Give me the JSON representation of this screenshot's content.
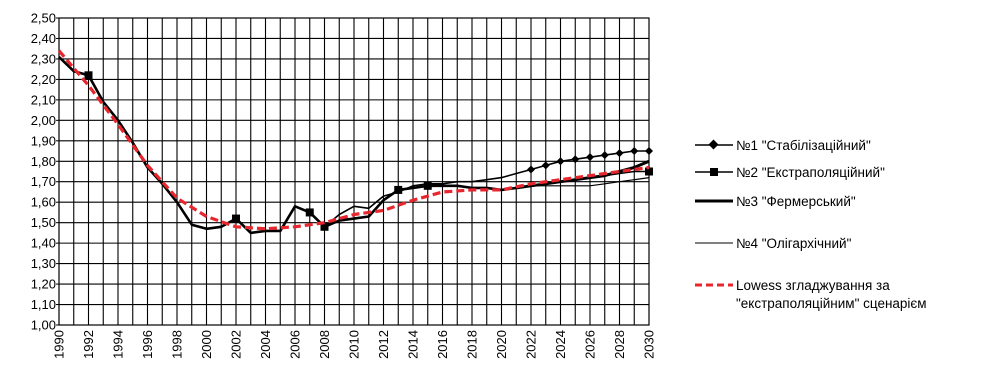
{
  "chart_data": {
    "type": "line",
    "xlim": [
      1990,
      2030
    ],
    "ylim": [
      1.0,
      2.5
    ],
    "y_ticks": [
      "1,00",
      "1,10",
      "1,20",
      "1,30",
      "1,40",
      "1,50",
      "1,60",
      "1,70",
      "1,80",
      "1,90",
      "2,00",
      "2,10",
      "2,20",
      "2,30",
      "2,40",
      "2,50"
    ],
    "x_ticks": [
      "1990",
      "1992",
      "1994",
      "1996",
      "1998",
      "2000",
      "2002",
      "2004",
      "2006",
      "2008",
      "2010",
      "2012",
      "2014",
      "2016",
      "2018",
      "2020",
      "2022",
      "2024",
      "2026",
      "2028",
      "2030"
    ],
    "grid": true,
    "legend_position": "right",
    "historical": {
      "x": [
        1990,
        1991,
        1992,
        1993,
        1994,
        1995,
        1996,
        1997,
        1998,
        1999,
        2000,
        2001,
        2002,
        2003,
        2004,
        2005,
        2006,
        2007,
        2008,
        2009,
        2010,
        2011,
        2012,
        2013,
        2014,
        2015,
        2016,
        2017,
        2018,
        2019,
        2020,
        2021
      ],
      "y": [
        2.31,
        2.24,
        2.22,
        2.09,
        2.0,
        1.89,
        1.77,
        1.69,
        1.6,
        1.49,
        1.47,
        1.48,
        1.52,
        1.45,
        1.46,
        1.46,
        1.58,
        1.55,
        1.48,
        1.51,
        1.52,
        1.53,
        1.61,
        1.66,
        1.67,
        1.68,
        1.68,
        1.68,
        1.67,
        1.67,
        1.66,
        1.67
      ]
    },
    "series": [
      {
        "name": "№1 \"Стабілізаційний\"",
        "marker": "diamond",
        "style": "thin",
        "x": [
          1990,
          1991,
          1992,
          1993,
          1994,
          1995,
          1996,
          1997,
          1998,
          1999,
          2000,
          2001,
          2002,
          2003,
          2004,
          2005,
          2006,
          2007,
          2008,
          2009,
          2010,
          2011,
          2012,
          2013,
          2014,
          2015,
          2016,
          2017,
          2018,
          2019,
          2020,
          2021,
          2022,
          2023,
          2024,
          2025,
          2026,
          2027,
          2028,
          2029,
          2030
        ],
        "y": [
          2.31,
          2.24,
          2.22,
          2.09,
          2.0,
          1.89,
          1.77,
          1.69,
          1.6,
          1.49,
          1.47,
          1.48,
          1.52,
          1.45,
          1.46,
          1.46,
          1.58,
          1.55,
          1.48,
          1.54,
          1.58,
          1.57,
          1.63,
          1.65,
          1.68,
          1.69,
          1.69,
          1.7,
          1.7,
          1.71,
          1.72,
          1.74,
          1.76,
          1.78,
          1.8,
          1.81,
          1.82,
          1.83,
          1.84,
          1.85,
          1.85
        ]
      },
      {
        "name": "№2 \"Екстраполяційний\"",
        "marker": "square",
        "style": "thin",
        "x": [
          1990,
          1991,
          1992,
          1993,
          1994,
          1995,
          1996,
          1997,
          1998,
          1999,
          2000,
          2001,
          2002,
          2003,
          2004,
          2005,
          2006,
          2007,
          2008,
          2009,
          2010,
          2011,
          2012,
          2013,
          2014,
          2015,
          2016,
          2017,
          2018,
          2019,
          2020,
          2021,
          2022,
          2023,
          2024,
          2025,
          2026,
          2027,
          2028,
          2029,
          2030
        ],
        "y": [
          2.31,
          2.24,
          2.22,
          2.09,
          2.0,
          1.89,
          1.77,
          1.69,
          1.6,
          1.49,
          1.47,
          1.48,
          1.52,
          1.45,
          1.46,
          1.46,
          1.58,
          1.55,
          1.48,
          1.51,
          1.52,
          1.53,
          1.61,
          1.66,
          1.67,
          1.68,
          1.68,
          1.68,
          1.67,
          1.67,
          1.66,
          1.67,
          1.68,
          1.69,
          1.7,
          1.71,
          1.72,
          1.73,
          1.74,
          1.75,
          1.75
        ]
      },
      {
        "name": "№3 \"Фермерський\"",
        "marker": "none",
        "style": "thick",
        "x": [
          2021,
          2022,
          2023,
          2024,
          2025,
          2026,
          2027,
          2028,
          2029,
          2030
        ],
        "y": [
          1.67,
          1.68,
          1.69,
          1.7,
          1.71,
          1.72,
          1.73,
          1.75,
          1.77,
          1.8
        ]
      },
      {
        "name": "№4 \"Олігархічний\"",
        "marker": "none",
        "style": "hair",
        "x": [
          2021,
          2022,
          2023,
          2024,
          2025,
          2026,
          2027,
          2028,
          2029,
          2030
        ],
        "y": [
          1.67,
          1.68,
          1.68,
          1.68,
          1.68,
          1.68,
          1.69,
          1.7,
          1.71,
          1.72
        ]
      },
      {
        "name": "Lowess згладжування за \"екстраполяційним\" сценарієм",
        "marker": "none",
        "style": "dashed-red",
        "x": [
          1990,
          1992,
          1994,
          1996,
          1998,
          2000,
          2002,
          2004,
          2006,
          2008,
          2010,
          2012,
          2014,
          2016,
          2018,
          2020,
          2022,
          2024,
          2026,
          2028,
          2030
        ],
        "y": [
          2.34,
          2.17,
          1.98,
          1.78,
          1.62,
          1.53,
          1.48,
          1.47,
          1.48,
          1.5,
          1.54,
          1.56,
          1.61,
          1.65,
          1.66,
          1.66,
          1.69,
          1.71,
          1.73,
          1.75,
          1.77
        ]
      }
    ],
    "legend": [
      {
        "label": "№1 \"Стабілізаційний\""
      },
      {
        "label": "№2 \"Екстраполяційний\""
      },
      {
        "label": "№3 \"Фермерський\""
      },
      {
        "label": "№4 \"Олігархічний\""
      },
      {
        "label_lines": [
          "Lowess згладжування за",
          "\"екстраполяційним\" сценарієм"
        ]
      }
    ],
    "colors": {
      "lines": "#000000",
      "lowess": "#e8262e",
      "grid": "#000000"
    }
  }
}
